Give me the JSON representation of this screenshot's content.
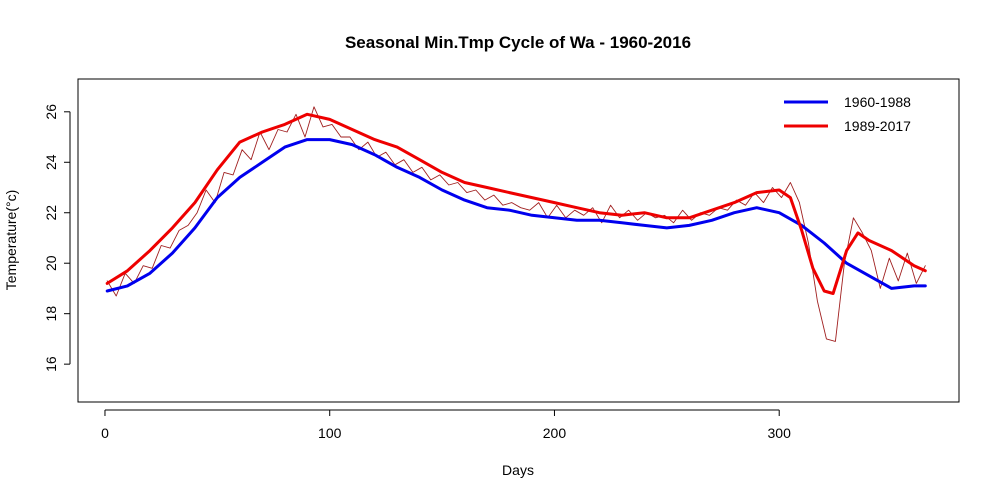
{
  "chart_data": {
    "type": "line",
    "title": "Seasonal Min.Tmp Cycle of Wa - 1960-2016",
    "xlabel": "Days",
    "ylabel": "Temperature(°c)",
    "xlim": [
      -12,
      380
    ],
    "ylim": [
      14.5,
      27.3
    ],
    "x_ticks": [
      0,
      100,
      200,
      300
    ],
    "y_ticks": [
      16,
      18,
      20,
      22,
      24,
      26
    ],
    "grid": false,
    "legend_position": "top-right",
    "series": [
      {
        "name": "1960-1988",
        "color": "#0000ee",
        "style": "smoothed",
        "x": [
          1,
          10,
          20,
          30,
          40,
          50,
          60,
          70,
          80,
          90,
          100,
          110,
          120,
          130,
          140,
          150,
          160,
          170,
          180,
          190,
          200,
          210,
          220,
          230,
          240,
          250,
          260,
          270,
          280,
          290,
          300,
          310,
          320,
          330,
          340,
          350,
          360,
          365
        ],
        "y": [
          18.9,
          19.1,
          19.6,
          20.4,
          21.4,
          22.6,
          23.4,
          24.0,
          24.6,
          24.9,
          24.9,
          24.7,
          24.3,
          23.8,
          23.4,
          22.9,
          22.5,
          22.2,
          22.1,
          21.9,
          21.8,
          21.7,
          21.7,
          21.6,
          21.5,
          21.4,
          21.5,
          21.7,
          22.0,
          22.2,
          22.0,
          21.5,
          20.8,
          20.0,
          19.5,
          19.0,
          19.1,
          19.1
        ]
      },
      {
        "name": "1989-2017",
        "color": "#ee0000",
        "style": "smoothed",
        "x": [
          1,
          10,
          20,
          30,
          40,
          50,
          60,
          70,
          80,
          90,
          100,
          110,
          120,
          130,
          140,
          150,
          160,
          170,
          180,
          190,
          200,
          210,
          220,
          230,
          240,
          250,
          260,
          270,
          280,
          290,
          300,
          305,
          310,
          315,
          320,
          324,
          330,
          335,
          340,
          350,
          360,
          365
        ],
        "y": [
          19.2,
          19.7,
          20.5,
          21.4,
          22.4,
          23.7,
          24.8,
          25.2,
          25.5,
          25.9,
          25.7,
          25.3,
          24.9,
          24.6,
          24.1,
          23.6,
          23.2,
          23.0,
          22.8,
          22.6,
          22.4,
          22.2,
          22.0,
          21.9,
          22.0,
          21.8,
          21.8,
          22.1,
          22.4,
          22.8,
          22.9,
          22.6,
          21.3,
          19.8,
          18.9,
          18.8,
          20.5,
          21.2,
          20.9,
          20.5,
          19.9,
          19.7
        ]
      },
      {
        "name": "",
        "color": "#a02020",
        "style": "raw",
        "x": [
          1,
          5,
          9,
          13,
          17,
          21,
          25,
          29,
          33,
          37,
          41,
          45,
          49,
          53,
          57,
          61,
          65,
          69,
          73,
          77,
          81,
          85,
          89,
          93,
          97,
          101,
          105,
          109,
          113,
          117,
          121,
          125,
          129,
          133,
          137,
          141,
          145,
          149,
          153,
          157,
          161,
          165,
          169,
          173,
          177,
          181,
          185,
          189,
          193,
          197,
          201,
          205,
          209,
          213,
          217,
          221,
          225,
          229,
          233,
          237,
          241,
          245,
          249,
          253,
          257,
          261,
          265,
          269,
          273,
          277,
          281,
          285,
          289,
          293,
          297,
          301,
          305,
          309,
          313,
          317,
          321,
          325,
          329,
          333,
          337,
          341,
          345,
          349,
          353,
          357,
          361,
          365
        ],
        "y": [
          19.3,
          18.7,
          19.6,
          19.2,
          19.9,
          19.8,
          20.7,
          20.6,
          21.3,
          21.5,
          22.0,
          22.9,
          22.4,
          23.6,
          23.5,
          24.5,
          24.1,
          25.2,
          24.5,
          25.3,
          25.2,
          25.9,
          25.0,
          26.2,
          25.4,
          25.5,
          25.0,
          25.0,
          24.5,
          24.8,
          24.2,
          24.4,
          23.9,
          24.1,
          23.6,
          23.8,
          23.3,
          23.5,
          23.1,
          23.2,
          22.8,
          22.9,
          22.5,
          22.7,
          22.3,
          22.4,
          22.2,
          22.1,
          22.4,
          21.8,
          22.3,
          21.8,
          22.1,
          21.9,
          22.2,
          21.6,
          22.3,
          21.8,
          22.1,
          21.7,
          22.0,
          21.8,
          21.9,
          21.6,
          22.1,
          21.7,
          22.0,
          21.9,
          22.2,
          22.1,
          22.5,
          22.3,
          22.8,
          22.4,
          23.0,
          22.6,
          23.2,
          22.4,
          20.8,
          18.5,
          17.0,
          16.9,
          20.0,
          21.8,
          21.2,
          20.5,
          19.0,
          20.2,
          19.3,
          20.4,
          19.2,
          19.9
        ]
      }
    ],
    "legend": [
      {
        "label": "1960-1988",
        "color": "#0000ee"
      },
      {
        "label": "1989-2017",
        "color": "#ee0000"
      }
    ]
  }
}
